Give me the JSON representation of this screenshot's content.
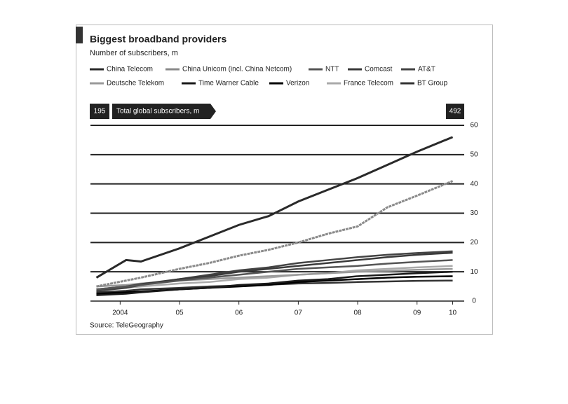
{
  "chart_data": {
    "type": "line",
    "title": "Biggest broadband providers",
    "subtitle": "Number of subscribers, m",
    "source": "Source: TeleGeography",
    "annotation": {
      "label": "Total global subscribers, m",
      "start": "195",
      "end": "492"
    },
    "x": [
      2004.1,
      2004.6,
      2004.85,
      2005.5,
      2006,
      2006.5,
      2007,
      2007.5,
      2008,
      2008.5,
      2009,
      2009.5,
      2010.1
    ],
    "xlim": [
      2004,
      2010.2
    ],
    "xticks": [
      {
        "value": 2004.5,
        "label": "2004"
      },
      {
        "value": 2005.5,
        "label": "05"
      },
      {
        "value": 2006.5,
        "label": "06"
      },
      {
        "value": 2007.5,
        "label": "07"
      },
      {
        "value": 2008.5,
        "label": "08"
      },
      {
        "value": 2009.5,
        "label": "09"
      },
      {
        "value": 2010.1,
        "label": "10"
      }
    ],
    "ylim": [
      0,
      60
    ],
    "yticks": [
      0,
      10,
      20,
      30,
      40,
      50,
      60
    ],
    "grid": true,
    "series": [
      {
        "name": "China Telecom",
        "color": "#2a2a2a",
        "values": [
          8,
          14,
          13.5,
          18,
          22,
          26,
          29,
          34,
          38,
          42,
          46.5,
          51,
          56
        ]
      },
      {
        "name": "China Unicom (incl. China Netcom)",
        "color": "#8a8a8a",
        "values": [
          5,
          7,
          8,
          11,
          13,
          15.5,
          17.5,
          20,
          23,
          25.5,
          32,
          36,
          41
        ]
      },
      {
        "name": "NTT",
        "color": "#555555",
        "values": [
          4,
          5,
          5.5,
          7,
          8,
          9,
          10,
          11,
          11.5,
          12,
          12.8,
          13.4,
          14
        ]
      },
      {
        "name": "Comcast",
        "color": "#3a3a3a",
        "values": [
          4,
          5,
          5.8,
          7.5,
          8.5,
          10,
          11,
          12,
          13,
          14,
          15,
          15.8,
          16.5
        ]
      },
      {
        "name": "AT&T",
        "color": "#444444",
        "values": [
          3.5,
          4.5,
          5.5,
          7.5,
          9,
          10.5,
          11.5,
          13,
          14,
          15,
          15.8,
          16.4,
          17
        ]
      },
      {
        "name": "Deutsche Telekom",
        "color": "#9a9a9a",
        "values": [
          5,
          5.5,
          6,
          7,
          7.5,
          8,
          8.5,
          9,
          9.5,
          10,
          10.3,
          10.7,
          11
        ]
      },
      {
        "name": "Time Warner Cable",
        "color": "#1a1a1a",
        "values": [
          2,
          2.5,
          3,
          4,
          4.5,
          5.5,
          6,
          7,
          7.5,
          8.5,
          9,
          9.5,
          10
        ]
      },
      {
        "name": "Verizon",
        "color": "#000000",
        "values": [
          2.5,
          3,
          3.3,
          4,
          4.5,
          5,
          5.5,
          6.5,
          7,
          7.5,
          8,
          8.3,
          8.5
        ]
      },
      {
        "name": "France Telecom",
        "color": "#aaaaaa",
        "values": [
          4,
          4.5,
          5,
          6,
          6.5,
          7.5,
          8,
          9,
          9.5,
          10.5,
          11,
          11.5,
          12
        ]
      },
      {
        "name": "BT Group",
        "color": "#333333",
        "values": [
          3,
          3.5,
          4,
          4.5,
          5,
          5.3,
          5.6,
          6,
          6.2,
          6.5,
          6.7,
          6.9,
          7
        ]
      }
    ]
  }
}
